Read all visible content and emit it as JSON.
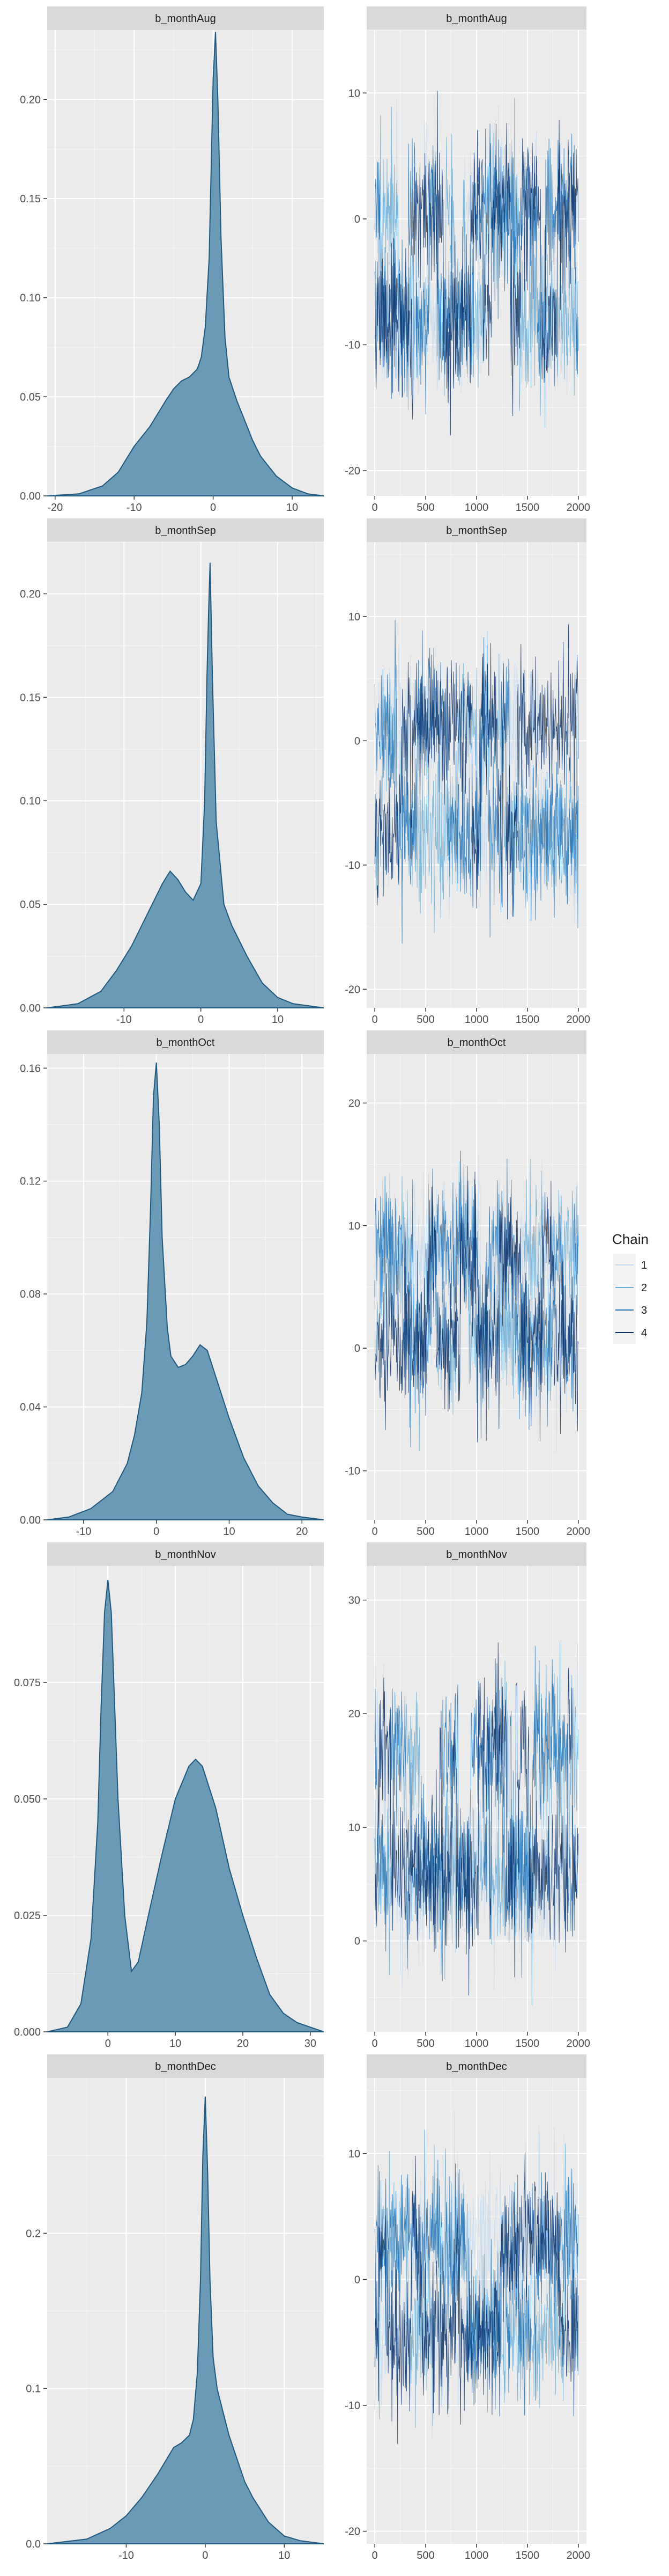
{
  "legend": {
    "title": "Chain",
    "items": [
      "1",
      "2",
      "3",
      "4"
    ],
    "colors": [
      "#c6dbef",
      "#6baed6",
      "#2171b5",
      "#08306b"
    ]
  },
  "colors": {
    "density_fill": "#6a9ab5",
    "density_line": "#21587f",
    "panel_bg": "#ebebeb",
    "strip_bg": "#d9d9d9",
    "grid_major": "#ffffff"
  },
  "chart_data": [
    {
      "type": "area",
      "kind": "density",
      "title": "b_monthAug",
      "xlim": [
        -21,
        14
      ],
      "ylim": [
        0,
        0.235
      ],
      "xticks": [
        -20,
        -10,
        0,
        10
      ],
      "xtick_labels": [
        "-20",
        "-10",
        "0",
        "10"
      ],
      "yticks": [
        0,
        0.05,
        0.1,
        0.15,
        0.2
      ],
      "ytick_labels": [
        "0.00",
        "0.05",
        "0.10",
        "0.15",
        "0.20"
      ],
      "x": [
        -21,
        -17,
        -14,
        -12,
        -10,
        -8,
        -6,
        -5,
        -4,
        -3,
        -2,
        -1.5,
        -1,
        -0.5,
        -0.2,
        0,
        0.3,
        0.6,
        1,
        1.5,
        2,
        3,
        4,
        5,
        6,
        8,
        10,
        12,
        14
      ],
      "y": [
        0,
        0.001,
        0.005,
        0.012,
        0.025,
        0.035,
        0.048,
        0.054,
        0.058,
        0.06,
        0.064,
        0.07,
        0.085,
        0.12,
        0.175,
        0.21,
        0.234,
        0.2,
        0.13,
        0.08,
        0.06,
        0.048,
        0.038,
        0.028,
        0.02,
        0.01,
        0.004,
        0.001,
        0
      ]
    },
    {
      "type": "line",
      "kind": "trace",
      "title": "b_monthAug",
      "xlim": [
        -80,
        2080
      ],
      "ylim": [
        -22,
        15
      ],
      "xticks": [
        0,
        500,
        1000,
        1500,
        2000
      ],
      "xtick_labels": [
        "0",
        "500",
        "1000",
        "1500",
        "2000"
      ],
      "yticks": [
        -20,
        -10,
        0,
        10
      ],
      "ytick_labels": [
        "-20",
        "-10",
        "0",
        "10"
      ],
      "iterations": 2000,
      "center": -2.5,
      "spread": 5.2,
      "lower_mode": -8.0,
      "upper_mode": 1.0
    },
    {
      "type": "area",
      "kind": "density",
      "title": "b_monthSep",
      "xlim": [
        -20,
        16
      ],
      "ylim": [
        0,
        0.225
      ],
      "xticks": [
        -10,
        0,
        10
      ],
      "xtick_labels": [
        "-10",
        "0",
        "10"
      ],
      "yticks": [
        0,
        0.05,
        0.1,
        0.15,
        0.2
      ],
      "ytick_labels": [
        "0.00",
        "0.05",
        "0.10",
        "0.15",
        "0.20"
      ],
      "x": [
        -20,
        -16,
        -13,
        -11,
        -9,
        -7,
        -5,
        -4,
        -3,
        -2,
        -1,
        0,
        0.5,
        0.8,
        1,
        1.2,
        1.5,
        2,
        3,
        4,
        6,
        8,
        10,
        12,
        14,
        16
      ],
      "y": [
        0,
        0.002,
        0.008,
        0.018,
        0.03,
        0.045,
        0.06,
        0.066,
        0.062,
        0.056,
        0.052,
        0.06,
        0.1,
        0.16,
        0.19,
        0.215,
        0.16,
        0.09,
        0.05,
        0.04,
        0.025,
        0.012,
        0.005,
        0.002,
        0.001,
        0
      ]
    },
    {
      "type": "line",
      "kind": "trace",
      "title": "b_monthSep",
      "xlim": [
        -80,
        2080
      ],
      "ylim": [
        -21.5,
        16
      ],
      "xticks": [
        0,
        500,
        1000,
        1500,
        2000
      ],
      "xtick_labels": [
        "0",
        "500",
        "1000",
        "1500",
        "2000"
      ],
      "yticks": [
        -20,
        -10,
        0,
        10
      ],
      "ytick_labels": [
        "-20",
        "-10",
        "0",
        "10"
      ],
      "iterations": 2000,
      "center": -2.5,
      "spread": 5.0,
      "lower_mode": -7.5,
      "upper_mode": 1.2
    },
    {
      "type": "area",
      "kind": "density",
      "title": "b_monthOct",
      "xlim": [
        -15,
        23
      ],
      "ylim": [
        0,
        0.165
      ],
      "xticks": [
        -10,
        0,
        10,
        20
      ],
      "xtick_labels": [
        "-10",
        "0",
        "10",
        "20"
      ],
      "yticks": [
        0,
        0.04,
        0.08,
        0.12,
        0.16
      ],
      "ytick_labels": [
        "0.00",
        "0.04",
        "0.08",
        "0.12",
        "0.16"
      ],
      "x": [
        -15,
        -12,
        -9,
        -6,
        -4,
        -3,
        -2,
        -1.3,
        -0.8,
        -0.4,
        0,
        0.4,
        0.8,
        1.5,
        2,
        3,
        4,
        5,
        6,
        7,
        8,
        10,
        12,
        14,
        16,
        18,
        20,
        23
      ],
      "y": [
        0,
        0.001,
        0.004,
        0.01,
        0.02,
        0.03,
        0.045,
        0.07,
        0.11,
        0.15,
        0.162,
        0.14,
        0.1,
        0.068,
        0.058,
        0.054,
        0.055,
        0.058,
        0.062,
        0.06,
        0.052,
        0.036,
        0.022,
        0.012,
        0.006,
        0.002,
        0.001,
        0
      ]
    },
    {
      "type": "line",
      "kind": "trace",
      "title": "b_monthOct",
      "xlim": [
        -80,
        2080
      ],
      "ylim": [
        -14,
        24
      ],
      "xticks": [
        0,
        500,
        1000,
        1500,
        2000
      ],
      "xtick_labels": [
        "0",
        "500",
        "1000",
        "1500",
        "2000"
      ],
      "yticks": [
        -10,
        0,
        10,
        20
      ],
      "ytick_labels": [
        "-10",
        "0",
        "10",
        "20"
      ],
      "iterations": 2000,
      "center": 5.5,
      "spread": 5.0,
      "lower_mode": 0.5,
      "upper_mode": 8.0
    },
    {
      "type": "area",
      "kind": "density",
      "title": "b_monthNov",
      "xlim": [
        -9,
        32
      ],
      "ylim": [
        0,
        0.1
      ],
      "xticks": [
        0,
        10,
        20,
        30
      ],
      "xtick_labels": [
        "0",
        "10",
        "20",
        "30"
      ],
      "yticks": [
        0,
        0.025,
        0.05,
        0.075
      ],
      "ytick_labels": [
        "0.000",
        "0.025",
        "0.050",
        "0.075"
      ],
      "x": [
        -9,
        -6,
        -4,
        -2.5,
        -1.5,
        -1,
        -0.5,
        0,
        0.5,
        1,
        1.5,
        2.5,
        3.5,
        4.5,
        6,
        8,
        10,
        12,
        13,
        14,
        16,
        18,
        20,
        22,
        24,
        26,
        28,
        30,
        32
      ],
      "y": [
        0,
        0.001,
        0.006,
        0.02,
        0.045,
        0.07,
        0.09,
        0.097,
        0.09,
        0.07,
        0.05,
        0.025,
        0.013,
        0.015,
        0.025,
        0.038,
        0.05,
        0.057,
        0.0585,
        0.057,
        0.048,
        0.035,
        0.025,
        0.016,
        0.008,
        0.004,
        0.002,
        0.001,
        0
      ]
    },
    {
      "type": "line",
      "kind": "trace",
      "title": "b_monthNov",
      "xlim": [
        -80,
        2080
      ],
      "ylim": [
        -8,
        33
      ],
      "xticks": [
        0,
        500,
        1000,
        1500,
        2000
      ],
      "xtick_labels": [
        "0",
        "500",
        "1000",
        "1500",
        "2000"
      ],
      "yticks": [
        0,
        10,
        20,
        30
      ],
      "ytick_labels": [
        "0",
        "10",
        "20",
        "30"
      ],
      "iterations": 2000,
      "center": 12.0,
      "spread": 6.0,
      "lower_mode": 6.0,
      "upper_mode": 17.0
    },
    {
      "type": "area",
      "kind": "density",
      "title": "b_monthDec",
      "xlim": [
        -20,
        15
      ],
      "ylim": [
        0,
        0.3
      ],
      "xticks": [
        -10,
        0,
        10
      ],
      "xtick_labels": [
        "-10",
        "0",
        "10"
      ],
      "yticks": [
        0,
        0.1,
        0.2
      ],
      "ytick_labels": [
        "0.0",
        "0.1",
        "0.2"
      ],
      "x": [
        -20,
        -15,
        -12,
        -10,
        -8,
        -6,
        -4,
        -3,
        -2,
        -1.5,
        -1,
        -0.6,
        -0.3,
        0,
        0.3,
        0.6,
        1,
        1.5,
        2,
        3,
        4,
        5,
        6,
        8,
        10,
        12,
        15
      ],
      "y": [
        0,
        0.003,
        0.01,
        0.018,
        0.03,
        0.045,
        0.062,
        0.065,
        0.07,
        0.08,
        0.11,
        0.17,
        0.25,
        0.288,
        0.24,
        0.17,
        0.12,
        0.1,
        0.09,
        0.07,
        0.055,
        0.04,
        0.03,
        0.014,
        0.005,
        0.002,
        0
      ]
    },
    {
      "type": "line",
      "kind": "trace",
      "title": "b_monthDec",
      "xlim": [
        -80,
        2080
      ],
      "ylim": [
        -21,
        16
      ],
      "xticks": [
        0,
        500,
        1000,
        1500,
        2000
      ],
      "xtick_labels": [
        "0",
        "500",
        "1000",
        "1500",
        "2000"
      ],
      "yticks": [
        -20,
        -10,
        0,
        10
      ],
      "ytick_labels": [
        "-20",
        "-10",
        "0",
        "10"
      ],
      "iterations": 2000,
      "center": -0.5,
      "spread": 5.0,
      "lower_mode": -4.5,
      "upper_mode": 3.0
    }
  ]
}
